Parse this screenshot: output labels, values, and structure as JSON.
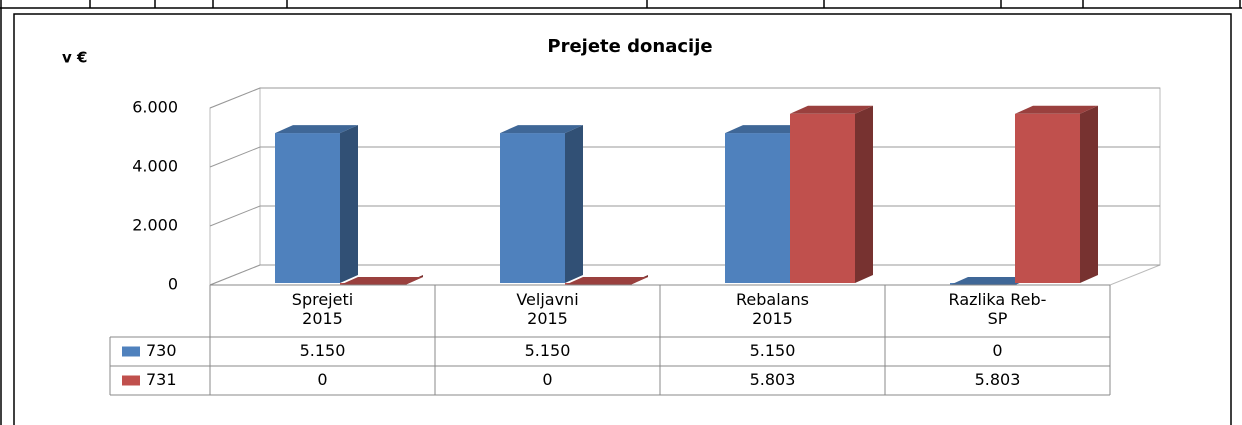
{
  "chart_data": {
    "type": "bar3d",
    "title": "Prejete donacije",
    "y_label": "v €",
    "categories": [
      "Sprejeti 2015",
      "Veljavni 2015",
      "Rebalans 2015",
      "Razlika Reb-SP"
    ],
    "series": [
      {
        "name": "730",
        "color": "#4f81bd",
        "values": [
          5150,
          5150,
          5150,
          0
        ],
        "value_labels": [
          "5.150",
          "5.150",
          "5.150",
          "0"
        ]
      },
      {
        "name": "731",
        "color": "#c0504d",
        "values": [
          0,
          0,
          5803,
          5803
        ],
        "value_labels": [
          "0",
          "0",
          "5.803",
          "5.803"
        ]
      }
    ],
    "ylim": [
      0,
      6000
    ],
    "yticks": [
      0,
      {
        "value": 2000,
        "label": "2.000"
      },
      {
        "value": 4000,
        "label": "4.000"
      },
      {
        "value": 6000,
        "label": "6.000"
      }
    ],
    "grid": true
  }
}
